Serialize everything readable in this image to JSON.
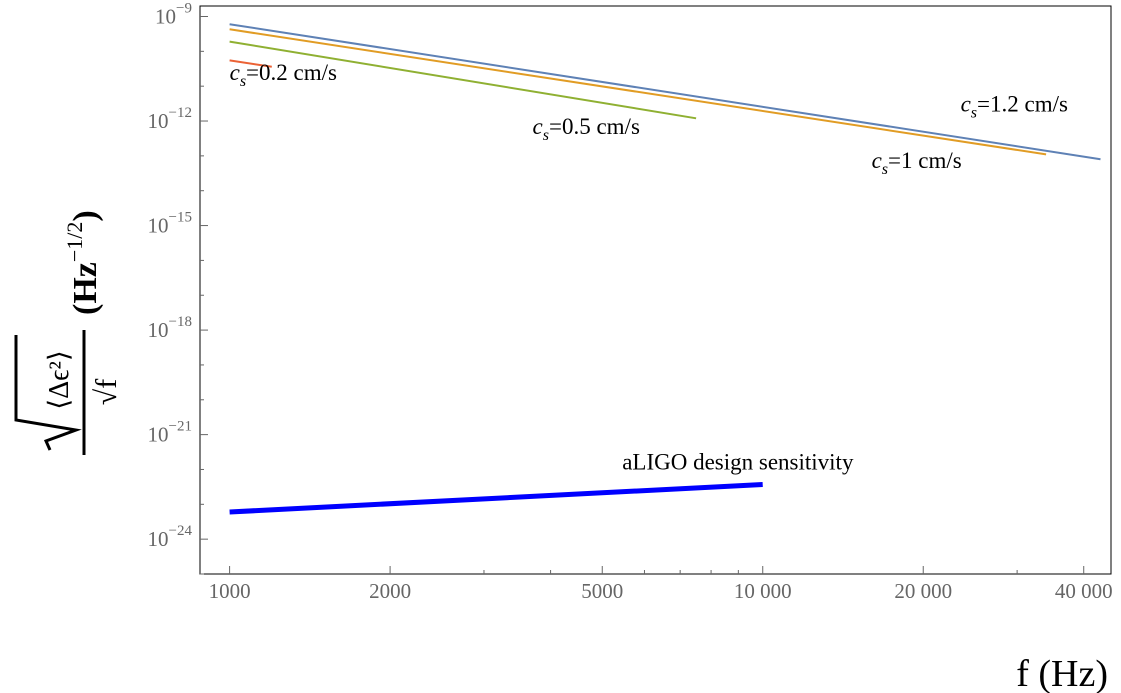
{
  "chart_data": {
    "type": "line",
    "xscale": "log",
    "yscale": "log",
    "xlim": [
      880,
      45000
    ],
    "ylim": [
      1e-25,
      2e-09
    ],
    "x_ticks": [
      {
        "value": 1000,
        "label": "1000"
      },
      {
        "value": 2000,
        "label": "2000"
      },
      {
        "value": 5000,
        "label": "5000"
      },
      {
        "value": 10000,
        "label": "10 000"
      },
      {
        "value": 20000,
        "label": "20 000"
      },
      {
        "value": 40000,
        "label": "40 000"
      }
    ],
    "y_ticks": [
      {
        "value": 1e-09,
        "base": "10",
        "exp": "−9"
      },
      {
        "value": 1e-12,
        "base": "10",
        "exp": "−12"
      },
      {
        "value": 1e-15,
        "base": "10",
        "exp": "−15"
      },
      {
        "value": 1e-18,
        "base": "10",
        "exp": "−18"
      },
      {
        "value": 1e-21,
        "base": "10",
        "exp": "−21"
      },
      {
        "value": 1e-24,
        "base": "10",
        "exp": "−24"
      }
    ],
    "xlabel": "f (Hz)",
    "ylabel_parts": {
      "sqrt_content": "⟨Δϵ²⟩",
      "denominator": "√f",
      "units": "(Hz",
      "units_exp": "−1/2",
      "units_close": ")"
    },
    "series": [
      {
        "label": "c_s=1.2 cm/s",
        "color": "#5e81b5",
        "width": 2,
        "points": [
          [
            1000,
            6e-10
          ],
          [
            43000,
            8e-14
          ]
        ]
      },
      {
        "label": "c_s=1 cm/s",
        "color": "#e19c24",
        "width": 2,
        "points": [
          [
            1000,
            4.3e-10
          ],
          [
            34000,
            1.1e-13
          ]
        ]
      },
      {
        "label": "c_s=0.5 cm/s",
        "color": "#8fb032",
        "width": 2,
        "points": [
          [
            1000,
            1.9e-10
          ],
          [
            7500,
            1.2e-12
          ]
        ]
      },
      {
        "label": "c_s=0.2 cm/s",
        "color": "#eb6235",
        "width": 2,
        "points": [
          [
            1000,
            5.5e-11
          ],
          [
            1200,
            3.6e-11
          ]
        ]
      },
      {
        "label": "aLIGO design sensitivity",
        "color": "#0000ff",
        "width": 5,
        "points": [
          [
            1000,
            6e-24
          ],
          [
            10000,
            3.7e-23
          ]
        ]
      }
    ],
    "annotations": [
      {
        "name": "cs-0.2-label",
        "sub_base": "c",
        "sub": "s",
        "rest": "=0.2 cm/s",
        "x": 1000,
        "y": 1.5e-11
      },
      {
        "name": "cs-0.5-label",
        "sub_base": "c",
        "sub": "s",
        "rest": "=0.5 cm/s",
        "x": 3700,
        "y": 4.2e-13
      },
      {
        "name": "cs-1-label",
        "sub_base": "c",
        "sub": "s",
        "rest": "=1 cm/s",
        "x": 16000,
        "y": 4.5e-14
      },
      {
        "name": "cs-1.2-label",
        "sub_base": "c",
        "sub": "s",
        "rest": "=1.2 cm/s",
        "x": 23500,
        "y": 1.9e-12
      },
      {
        "name": "aligo-label",
        "text": "aLIGO design sensitivity",
        "x": 5450,
        "y": 1e-22
      }
    ]
  }
}
